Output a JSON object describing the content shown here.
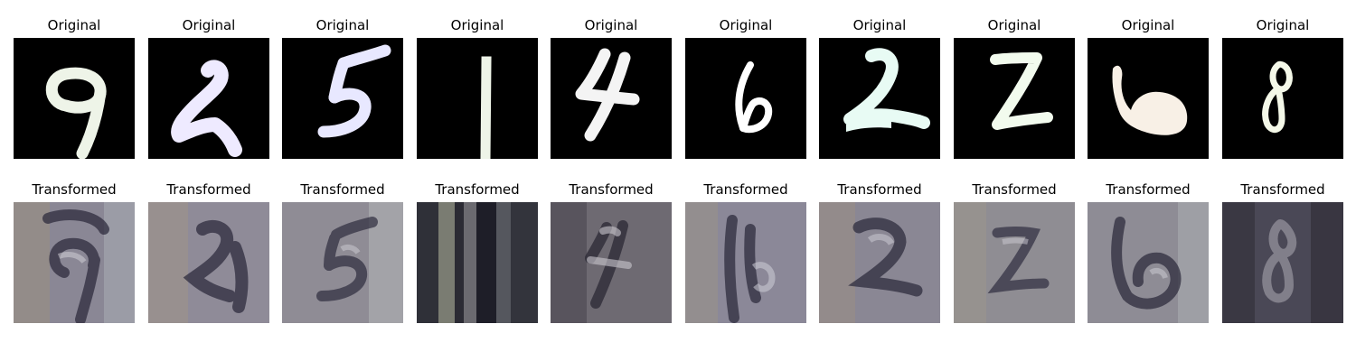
{
  "rows": {
    "original": {
      "cells": [
        {
          "title": "Original",
          "digit": "9"
        },
        {
          "title": "Original",
          "digit": "2"
        },
        {
          "title": "Original",
          "digit": "5"
        },
        {
          "title": "Original",
          "digit": "1"
        },
        {
          "title": "Original",
          "digit": "4"
        },
        {
          "title": "Original",
          "digit": "6"
        },
        {
          "title": "Original",
          "digit": "2"
        },
        {
          "title": "Original",
          "digit": "2"
        },
        {
          "title": "Original",
          "digit": "6"
        },
        {
          "title": "Original",
          "digit": "8"
        }
      ]
    },
    "transformed": {
      "cells": [
        {
          "title": "Transformed",
          "digit": "9"
        },
        {
          "title": "Transformed",
          "digit": "2"
        },
        {
          "title": "Transformed",
          "digit": "5"
        },
        {
          "title": "Transformed",
          "digit": "1"
        },
        {
          "title": "Transformed",
          "digit": "4"
        },
        {
          "title": "Transformed",
          "digit": "6"
        },
        {
          "title": "Transformed",
          "digit": "2"
        },
        {
          "title": "Transformed",
          "digit": "2"
        },
        {
          "title": "Transformed",
          "digit": "6"
        },
        {
          "title": "Transformed",
          "digit": "8"
        }
      ]
    }
  },
  "colors": {
    "original_background": "#000000",
    "original_strokes": [
      "#eef4e8",
      "#eeeaff",
      "#e8e8ff",
      "#eef4e8",
      "#f4f4f4",
      "#ffffff",
      "#e8fbf4",
      "#f2fbee",
      "#f8f0e6",
      "#f4f8e8"
    ],
    "transformed_background": "#8a8795",
    "transformed_dark": "#2e2c3e",
    "transformed_light": "#cfcdd6"
  }
}
